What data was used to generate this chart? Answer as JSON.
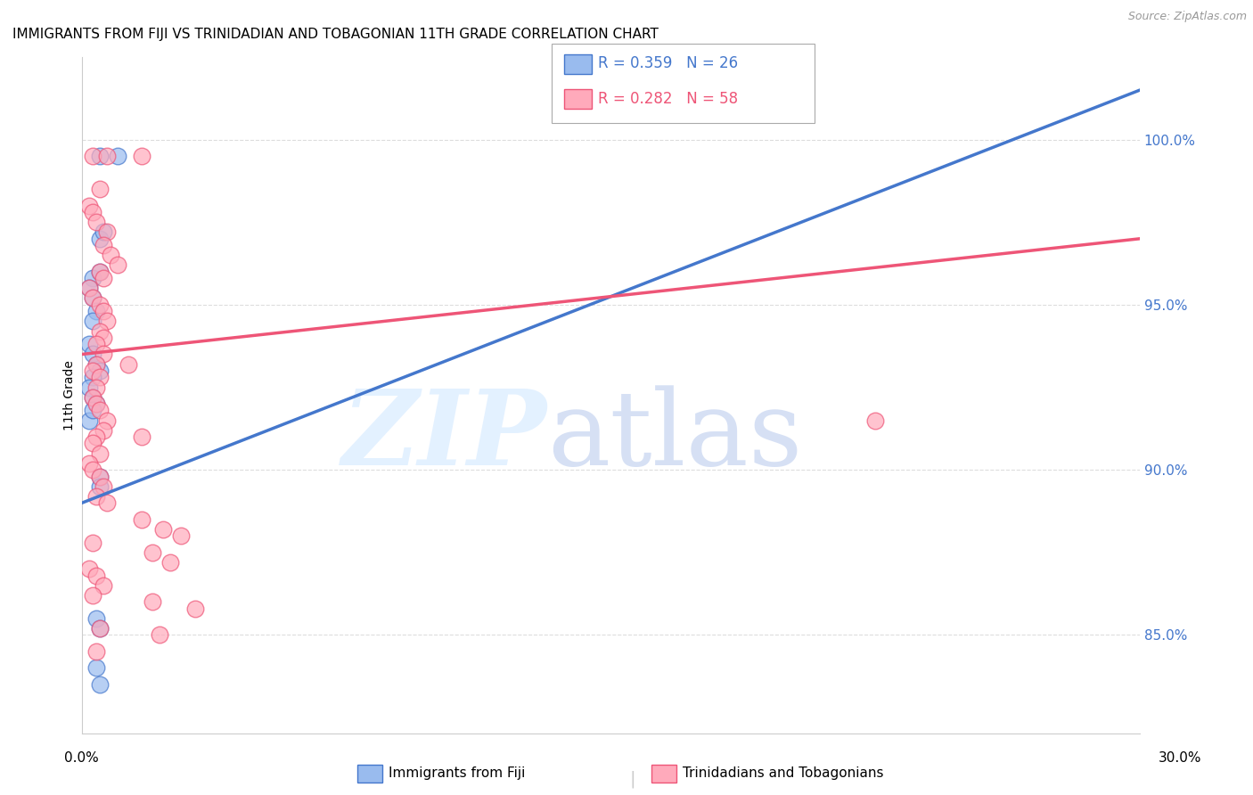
{
  "title": "IMMIGRANTS FROM FIJI VS TRINIDADIAN AND TOBAGONIAN 11TH GRADE CORRELATION CHART",
  "source": "Source: ZipAtlas.com",
  "ylabel": "11th Grade",
  "legend_blue_r": "R = 0.359",
  "legend_blue_n": "N = 26",
  "legend_pink_r": "R = 0.282",
  "legend_pink_n": "N = 58",
  "legend_label_blue": "Immigrants from Fiji",
  "legend_label_pink": "Trinidadians and Tobagonians",
  "blue_color": "#99BBEE",
  "pink_color": "#FFAABB",
  "blue_line_color": "#4477CC",
  "pink_line_color": "#EE5577",
  "xlim": [
    0.0,
    30.0
  ],
  "ylim": [
    82.0,
    102.5
  ],
  "yticks": [
    85.0,
    90.0,
    95.0,
    100.0
  ],
  "ytick_labels": [
    "85.0%",
    "90.0%",
    "95.0%",
    "100.0%"
  ],
  "blue_line_x0": 0.0,
  "blue_line_y0": 89.0,
  "blue_line_x1": 30.0,
  "blue_line_y1": 101.5,
  "pink_line_x0": 0.0,
  "pink_line_y0": 93.5,
  "pink_line_x1": 30.0,
  "pink_line_y1": 97.0,
  "grid_color": "#DDDDDD",
  "background_color": "#FFFFFF",
  "blue_points": [
    [
      0.5,
      99.5
    ],
    [
      1.0,
      99.5
    ],
    [
      0.5,
      97.0
    ],
    [
      0.6,
      97.2
    ],
    [
      0.3,
      95.8
    ],
    [
      0.5,
      96.0
    ],
    [
      0.2,
      95.5
    ],
    [
      0.3,
      95.2
    ],
    [
      0.4,
      94.8
    ],
    [
      0.3,
      94.5
    ],
    [
      0.2,
      93.8
    ],
    [
      0.3,
      93.5
    ],
    [
      0.4,
      93.2
    ],
    [
      0.5,
      93.0
    ],
    [
      0.3,
      92.8
    ],
    [
      0.2,
      92.5
    ],
    [
      0.3,
      92.2
    ],
    [
      0.4,
      92.0
    ],
    [
      0.2,
      91.5
    ],
    [
      0.3,
      91.8
    ],
    [
      0.5,
      89.8
    ],
    [
      0.5,
      89.5
    ],
    [
      0.4,
      85.5
    ],
    [
      0.5,
      85.2
    ],
    [
      0.4,
      84.0
    ],
    [
      0.5,
      83.5
    ]
  ],
  "pink_points": [
    [
      0.3,
      99.5
    ],
    [
      0.7,
      99.5
    ],
    [
      1.7,
      99.5
    ],
    [
      0.5,
      98.5
    ],
    [
      0.2,
      98.0
    ],
    [
      0.3,
      97.8
    ],
    [
      0.4,
      97.5
    ],
    [
      0.7,
      97.2
    ],
    [
      0.6,
      96.8
    ],
    [
      0.8,
      96.5
    ],
    [
      1.0,
      96.2
    ],
    [
      0.5,
      96.0
    ],
    [
      0.6,
      95.8
    ],
    [
      0.2,
      95.5
    ],
    [
      0.3,
      95.2
    ],
    [
      0.5,
      95.0
    ],
    [
      0.6,
      94.8
    ],
    [
      0.7,
      94.5
    ],
    [
      0.5,
      94.2
    ],
    [
      0.6,
      94.0
    ],
    [
      0.4,
      93.8
    ],
    [
      0.6,
      93.5
    ],
    [
      0.4,
      93.2
    ],
    [
      0.3,
      93.0
    ],
    [
      0.5,
      92.8
    ],
    [
      0.4,
      92.5
    ],
    [
      0.3,
      92.2
    ],
    [
      0.4,
      92.0
    ],
    [
      0.5,
      91.8
    ],
    [
      0.7,
      91.5
    ],
    [
      0.6,
      91.2
    ],
    [
      0.4,
      91.0
    ],
    [
      0.3,
      90.8
    ],
    [
      0.5,
      90.5
    ],
    [
      0.2,
      90.2
    ],
    [
      0.3,
      90.0
    ],
    [
      0.5,
      89.8
    ],
    [
      0.6,
      89.5
    ],
    [
      0.4,
      89.2
    ],
    [
      0.7,
      89.0
    ],
    [
      1.7,
      88.5
    ],
    [
      2.3,
      88.2
    ],
    [
      2.8,
      88.0
    ],
    [
      0.3,
      87.8
    ],
    [
      2.0,
      87.5
    ],
    [
      2.5,
      87.2
    ],
    [
      0.2,
      87.0
    ],
    [
      0.4,
      86.8
    ],
    [
      0.6,
      86.5
    ],
    [
      0.3,
      86.2
    ],
    [
      2.0,
      86.0
    ],
    [
      3.2,
      85.8
    ],
    [
      0.5,
      85.2
    ],
    [
      2.2,
      85.0
    ],
    [
      0.4,
      84.5
    ],
    [
      1.7,
      91.0
    ],
    [
      22.5,
      91.5
    ],
    [
      1.3,
      93.2
    ]
  ]
}
